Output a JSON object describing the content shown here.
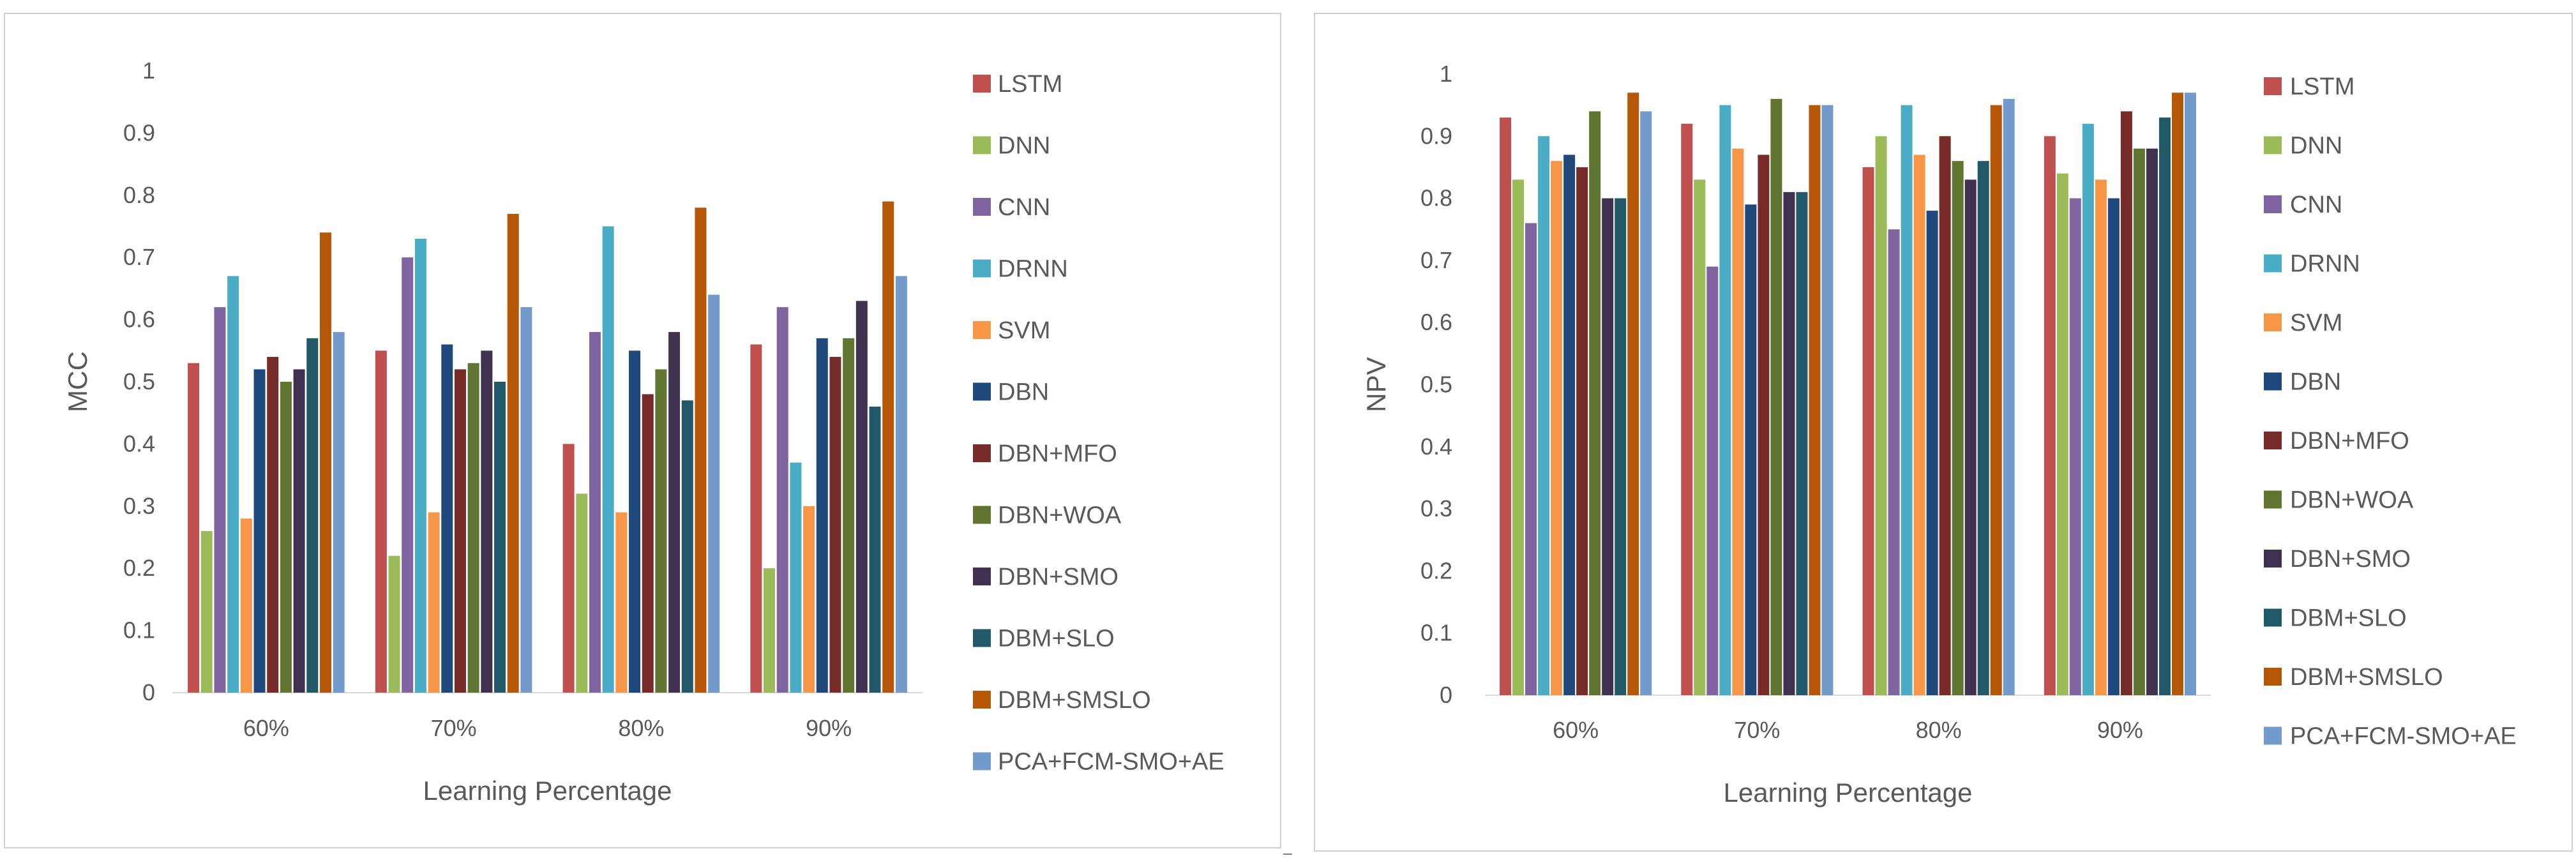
{
  "colors": [
    "#C0504D",
    "#9BBB59",
    "#8064A2",
    "#4BACC6",
    "#F79646",
    "#1F497D",
    "#772C2A",
    "#5F7530",
    "#403151",
    "#215968",
    "#B65708",
    "#729ACA"
  ],
  "chart_data": [
    {
      "type": "bar",
      "title": "",
      "xlabel": "Learning Percentage",
      "ylabel": "MCC",
      "ylim": [
        0,
        1
      ],
      "yticks": [
        "0",
        "0.1",
        "0.2",
        "0.3",
        "0.4",
        "0.5",
        "0.6",
        "0.7",
        "0.8",
        "0.9",
        "1"
      ],
      "categories": [
        "60%",
        "70%",
        "80%",
        "90%"
      ],
      "legend_position": "right",
      "series": [
        {
          "name": "LSTM",
          "values": [
            0.53,
            0.55,
            0.4,
            0.56
          ]
        },
        {
          "name": "DNN",
          "values": [
            0.26,
            0.22,
            0.32,
            0.2
          ]
        },
        {
          "name": "CNN",
          "values": [
            0.62,
            0.7,
            0.58,
            0.62
          ]
        },
        {
          "name": "DRNN",
          "values": [
            0.67,
            0.73,
            0.75,
            0.37
          ]
        },
        {
          "name": "SVM",
          "values": [
            0.28,
            0.29,
            0.29,
            0.3
          ]
        },
        {
          "name": "DBN",
          "values": [
            0.52,
            0.56,
            0.55,
            0.57
          ]
        },
        {
          "name": "DBN+MFO",
          "values": [
            0.54,
            0.52,
            0.48,
            0.54
          ]
        },
        {
          "name": "DBN+WOA",
          "values": [
            0.5,
            0.53,
            0.52,
            0.57
          ]
        },
        {
          "name": "DBN+SMO",
          "values": [
            0.52,
            0.55,
            0.58,
            0.63
          ]
        },
        {
          "name": "DBM+SLO",
          "values": [
            0.57,
            0.5,
            0.47,
            0.46
          ]
        },
        {
          "name": "DBM+SMSLO",
          "values": [
            0.74,
            0.77,
            0.78,
            0.79
          ]
        },
        {
          "name": "PCA+FCM-SMO+AE",
          "values": [
            0.58,
            0.62,
            0.64,
            0.67
          ]
        }
      ]
    },
    {
      "type": "bar",
      "title": "",
      "xlabel": "Learning Percentage",
      "ylabel": "NPV",
      "ylim": [
        0,
        1
      ],
      "yticks": [
        "0",
        "0.1",
        "0.2",
        "0.3",
        "0.4",
        "0.5",
        "0.6",
        "0.7",
        "0.8",
        "0.9",
        "1"
      ],
      "categories": [
        "60%",
        "70%",
        "80%",
        "90%"
      ],
      "legend_position": "right",
      "series": [
        {
          "name": "LSTM",
          "values": [
            0.93,
            0.92,
            0.85,
            0.9
          ]
        },
        {
          "name": "DNN",
          "values": [
            0.83,
            0.83,
            0.9,
            0.84
          ]
        },
        {
          "name": "CNN",
          "values": [
            0.76,
            0.69,
            0.75,
            0.8
          ]
        },
        {
          "name": "DRNN",
          "values": [
            0.9,
            0.95,
            0.95,
            0.92
          ]
        },
        {
          "name": "SVM",
          "values": [
            0.86,
            0.88,
            0.87,
            0.83
          ]
        },
        {
          "name": "DBN",
          "values": [
            0.87,
            0.79,
            0.78,
            0.8
          ]
        },
        {
          "name": "DBN+MFO",
          "values": [
            0.85,
            0.87,
            0.9,
            0.94
          ]
        },
        {
          "name": "DBN+WOA",
          "values": [
            0.94,
            0.96,
            0.86,
            0.88
          ]
        },
        {
          "name": "DBN+SMO",
          "values": [
            0.8,
            0.81,
            0.83,
            0.88
          ]
        },
        {
          "name": "DBM+SLO",
          "values": [
            0.8,
            0.81,
            0.86,
            0.93
          ]
        },
        {
          "name": "DBM+SMSLO",
          "values": [
            0.97,
            0.95,
            0.95,
            0.97
          ]
        },
        {
          "name": "PCA+FCM-SMO+AE",
          "values": [
            0.94,
            0.95,
            0.96,
            0.97
          ]
        }
      ]
    }
  ]
}
